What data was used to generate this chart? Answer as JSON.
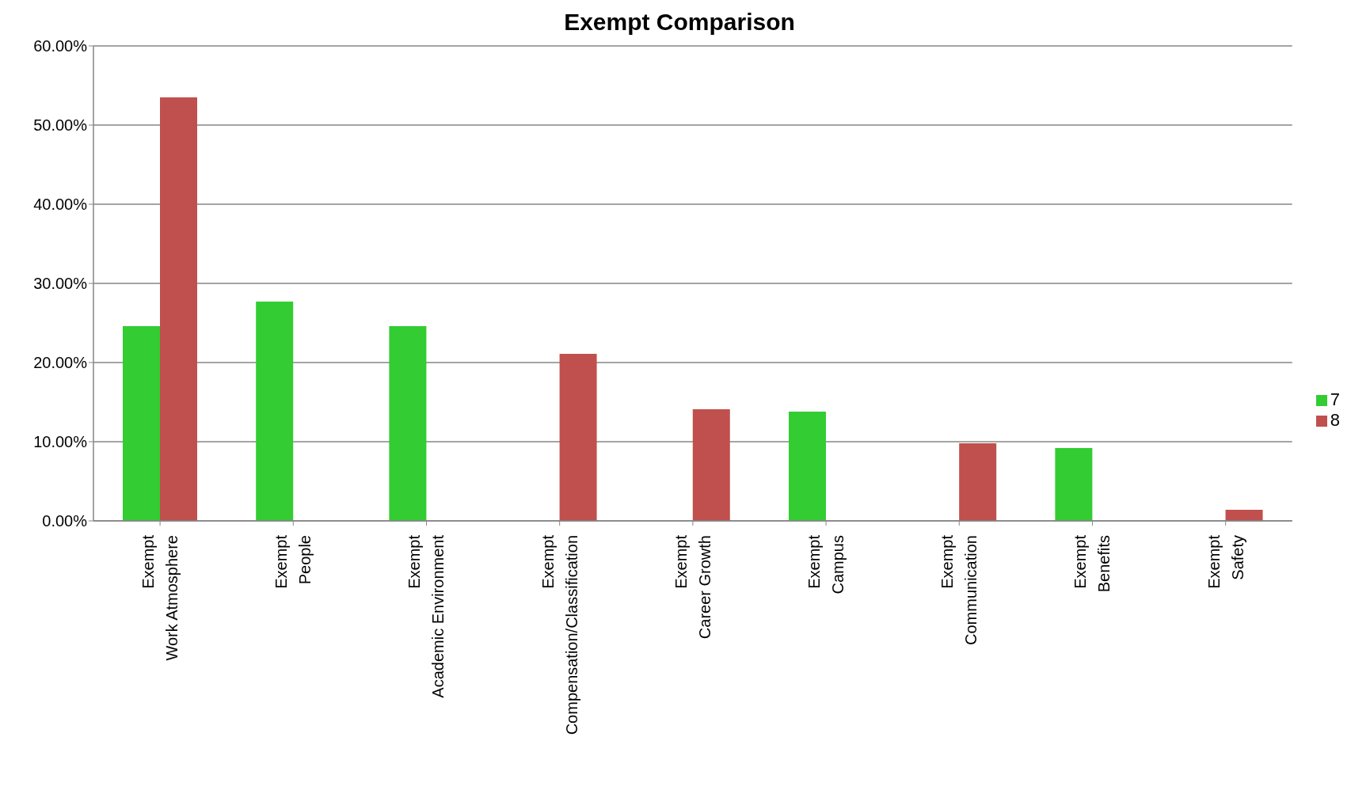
{
  "chart_data": {
    "type": "bar",
    "title": "Exempt Comparison",
    "categories": [
      "Exempt\nWork Atmosphere",
      "Exempt\nPeople",
      "Exempt\nAcademic Environment",
      "Exempt\nCompensation/Classification",
      "Exempt\nCareer Growth",
      "Exempt\nCampus",
      "Exempt\nCommunication",
      "Exempt\nBenefits",
      "Exempt\nSafety"
    ],
    "series": [
      {
        "name": "7",
        "color": "#33cc33",
        "values": [
          24.6,
          27.7,
          24.6,
          null,
          null,
          13.8,
          null,
          9.2,
          null
        ]
      },
      {
        "name": "8",
        "color": "#c0504d",
        "values": [
          53.5,
          null,
          null,
          21.1,
          14.1,
          null,
          9.8,
          null,
          1.4
        ]
      }
    ],
    "ylim": [
      0,
      60
    ],
    "yticks": [
      {
        "value": 0,
        "label": "0.00%"
      },
      {
        "value": 10,
        "label": "10.00%"
      },
      {
        "value": 20,
        "label": "20.00%"
      },
      {
        "value": 30,
        "label": "30.00%"
      },
      {
        "value": 40,
        "label": "40.00%"
      },
      {
        "value": 50,
        "label": "50.00%"
      },
      {
        "value": 60,
        "label": "60.00%"
      }
    ],
    "grid": "y",
    "legend": "right"
  }
}
